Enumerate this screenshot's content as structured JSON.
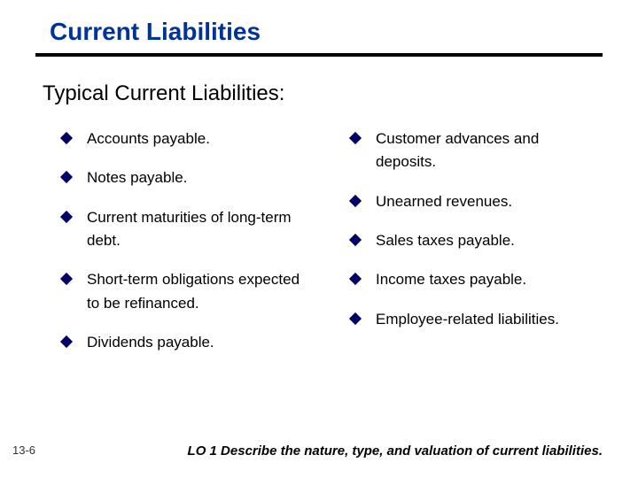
{
  "colors": {
    "title": "#003399",
    "rule": "#000000",
    "subtitle": "#000000",
    "bullet": "#000066",
    "body_text": "#000000",
    "footer_text": "#000000",
    "page_num": "#333333",
    "background": "#ffffff"
  },
  "title": "Current Liabilities",
  "subtitle": "Typical Current Liabilities:",
  "left_items": [
    "Accounts payable.",
    "Notes payable.",
    "Current maturities of long-term debt.",
    "Short-term obligations expected to be refinanced.",
    "Dividends payable."
  ],
  "right_items": [
    "Customer advances and deposits.",
    "Unearned revenues.",
    "Sales taxes payable.",
    "Income taxes payable.",
    "Employee-related liabilities."
  ],
  "page_number": "13-6",
  "footer": "LO 1  Describe the nature, type, and valuation of current liabilities."
}
